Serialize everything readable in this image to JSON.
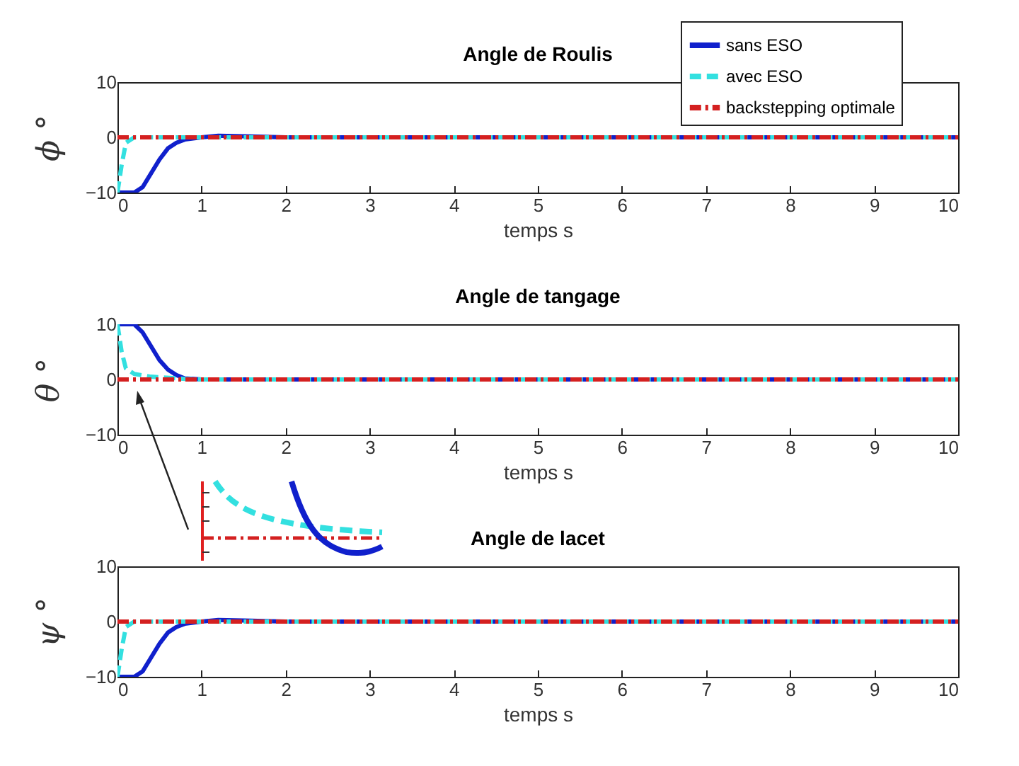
{
  "chart_data": [
    {
      "type": "line",
      "title": "Angle de Roulis",
      "xlabel": "temps s",
      "ylabel": "ϕ °",
      "xlim": [
        0,
        10
      ],
      "xticks": [
        0,
        1,
        2,
        3,
        4,
        5,
        6,
        7,
        8,
        9,
        10
      ],
      "ylim": [
        -10,
        10
      ],
      "yticks": [
        -10,
        0,
        10
      ],
      "grid": false,
      "legend": "top right",
      "series": [
        {
          "name": "sans ESO",
          "color": "#1020cc",
          "line_style": "solid",
          "x": [
            0,
            0.2,
            0.3,
            0.4,
            0.5,
            0.6,
            0.7,
            0.8,
            1,
            1.2,
            1.5,
            2,
            10
          ],
          "values": [
            -10,
            -10,
            -9,
            -6.5,
            -4,
            -2,
            -1,
            -0.4,
            0,
            0.3,
            0.2,
            0,
            0
          ]
        },
        {
          "name": "avec ESO",
          "color": "#33e0e0",
          "line_style": "dashed",
          "x": [
            0,
            0.05,
            0.1,
            0.2,
            10
          ],
          "values": [
            -10,
            -5,
            -1,
            0,
            0
          ]
        },
        {
          "name": "backstepping optimale",
          "color": "#d42020",
          "line_style": "dashdot",
          "x": [
            0,
            10
          ],
          "values": [
            0,
            0
          ]
        }
      ]
    },
    {
      "type": "line",
      "title": "Angle de tangage",
      "xlabel": "temps s",
      "ylabel": "θ °",
      "xlim": [
        0,
        10
      ],
      "xticks": [
        0,
        1,
        2,
        3,
        4,
        5,
        6,
        7,
        8,
        9,
        10
      ],
      "ylim": [
        -10,
        10
      ],
      "yticks": [
        -10,
        0,
        10
      ],
      "grid": false,
      "legend": "top right",
      "series": [
        {
          "name": "sans ESO",
          "color": "#1020cc",
          "line_style": "solid",
          "x": [
            0,
            0.2,
            0.3,
            0.4,
            0.5,
            0.6,
            0.7,
            0.8,
            1,
            10
          ],
          "values": [
            10,
            10,
            8.5,
            6,
            3.5,
            1.8,
            0.8,
            0.2,
            0,
            0
          ]
        },
        {
          "name": "avec ESO",
          "color": "#33e0e0",
          "line_style": "dashed",
          "x": [
            0,
            0.05,
            0.1,
            0.2,
            0.4,
            0.8,
            1,
            10
          ],
          "values": [
            10,
            5,
            2,
            1,
            0.5,
            0.1,
            0,
            0
          ]
        },
        {
          "name": "backstepping optimale",
          "color": "#d42020",
          "line_style": "dashdot",
          "x": [
            0,
            10
          ],
          "values": [
            0,
            0
          ]
        }
      ]
    },
    {
      "type": "line",
      "title": "Angle de lacet",
      "xlabel": "temps s",
      "ylabel": "ψ °",
      "xlim": [
        0,
        10
      ],
      "xticks": [
        0,
        1,
        2,
        3,
        4,
        5,
        6,
        7,
        8,
        9,
        10
      ],
      "ylim": [
        -10,
        10
      ],
      "yticks": [
        -10,
        0,
        10
      ],
      "grid": false,
      "legend": "top right",
      "series": [
        {
          "name": "sans ESO",
          "color": "#1020cc",
          "line_style": "solid",
          "x": [
            0,
            0.2,
            0.3,
            0.4,
            0.5,
            0.6,
            0.7,
            0.8,
            1,
            1.2,
            1.5,
            2,
            10
          ],
          "values": [
            -10,
            -10,
            -9,
            -6.5,
            -4,
            -2,
            -1,
            -0.4,
            0,
            0.3,
            0.2,
            0,
            0
          ]
        },
        {
          "name": "avec ESO",
          "color": "#33e0e0",
          "line_style": "dashed",
          "x": [
            0,
            0.05,
            0.1,
            0.2,
            10
          ],
          "values": [
            -10,
            -5,
            -1,
            0,
            0
          ]
        },
        {
          "name": "backstepping optimale",
          "color": "#d42020",
          "line_style": "dashdot",
          "x": [
            0,
            10
          ],
          "values": [
            0,
            0
          ]
        }
      ]
    }
  ]
}
